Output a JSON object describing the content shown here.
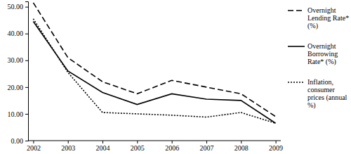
{
  "chart_data": {
    "type": "line",
    "categories": [
      "2002",
      "2003",
      "2004",
      "2005",
      "2006",
      "2007",
      "2008",
      "2009"
    ],
    "series": [
      {
        "name": "Overnight Lending Rate* (%)",
        "color": "#000000",
        "line_style": "dashed",
        "values": [
          51.5,
          31,
          22,
          17.5,
          22.5,
          20,
          17.5,
          9
        ]
      },
      {
        "name": "Overnight Borrowing Rate* (%)",
        "color": "#000000",
        "line_style": "solid",
        "values": [
          44.5,
          26,
          18,
          13.5,
          17.5,
          15.5,
          15,
          6.5
        ]
      },
      {
        "name": "Inflation, consumer prices (annual %)",
        "color": "#000000",
        "line_style": "dotted",
        "values": [
          45.5,
          25.5,
          10.5,
          10,
          9.5,
          8.8,
          10.5,
          6.5
        ]
      }
    ],
    "ylim": [
      0,
      52
    ],
    "yticks": [
      {
        "value": 0,
        "label": "0.00"
      },
      {
        "value": 10,
        "label": "10.00"
      },
      {
        "value": 20,
        "label": "20.00"
      },
      {
        "value": 30,
        "label": "30.00"
      },
      {
        "value": 40,
        "label": "40.00"
      },
      {
        "value": 50,
        "label": "50.00"
      }
    ],
    "grid": false,
    "legend": "right"
  }
}
